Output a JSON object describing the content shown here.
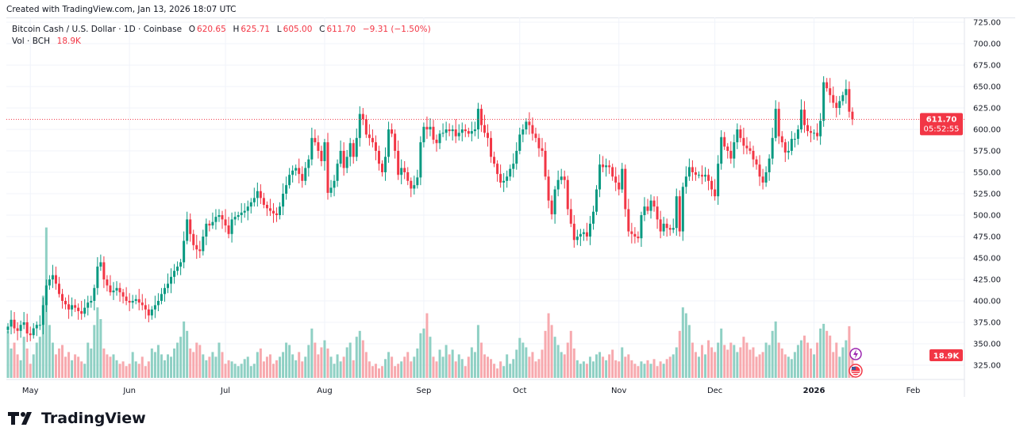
{
  "created": "Created with TradingView.com, Jan 13, 2026 18:07 UTC",
  "legend": {
    "symbol": "Bitcoin Cash / U.S. Dollar · 1D · Coinbase",
    "o_label": "O",
    "o": "620.65",
    "h_label": "H",
    "h": "625.71",
    "l_label": "L",
    "l": "605.00",
    "c_label": "C",
    "c": "611.70",
    "change": "−9.31 (−1.50%)",
    "vol_label": "Vol · BCH",
    "vol": "18.9K"
  },
  "price_label": {
    "value": "611.70",
    "countdown": "05:52:55"
  },
  "volume_label": "18.9K",
  "brand": "TradingView",
  "colors": {
    "up": "#089981",
    "down": "#f23645",
    "up_vol": "#8fd0c4",
    "down_vol": "#f7a9ae",
    "grid": "#f0f3fa",
    "event_icon": "#9c27b0"
  },
  "icons": [
    "lightning-event-icon",
    "us-flag-event-icon"
  ],
  "chart_data": {
    "type": "candlestick",
    "title": "",
    "interval": "1D",
    "ylim": [
      325,
      725
    ],
    "yticks": [
      "725.00",
      "700.00",
      "675.00",
      "650.00",
      "625.00",
      "600.00",
      "575.00",
      "550.00",
      "525.00",
      "500.00",
      "475.00",
      "450.00",
      "425.00",
      "400.00",
      "375.00",
      "350.00",
      "325.00"
    ],
    "xticks": [
      "May",
      "Jun",
      "Jul",
      "Aug",
      "Sep",
      "Oct",
      "Nov",
      "Dec",
      "2026",
      "Feb"
    ],
    "grid": true,
    "last_open": 620.65,
    "last_high": 625.71,
    "last_low": 605.0,
    "close": [
      370,
      378,
      368,
      365,
      372,
      375,
      362,
      360,
      368,
      372,
      372,
      395,
      418,
      425,
      430,
      420,
      408,
      400,
      396,
      390,
      395,
      392,
      388,
      385,
      392,
      398,
      400,
      415,
      440,
      445,
      425,
      418,
      410,
      412,
      415,
      410,
      405,
      400,
      398,
      400,
      402,
      398,
      395,
      390,
      383,
      390,
      395,
      400,
      408,
      415,
      420,
      428,
      435,
      440,
      445,
      470,
      495,
      478,
      465,
      460,
      458,
      475,
      490,
      488,
      492,
      498,
      500,
      495,
      488,
      478,
      495,
      498,
      500,
      503,
      505,
      510,
      515,
      520,
      528,
      520,
      512,
      508,
      505,
      502,
      500,
      510,
      525,
      535,
      547,
      552,
      555,
      548,
      540,
      555,
      565,
      590,
      585,
      575,
      563,
      585,
      526,
      532,
      540,
      560,
      575,
      555,
      568,
      584,
      568,
      590,
      618,
      612,
      594,
      590,
      585,
      575,
      560,
      550,
      568,
      600,
      595,
      575,
      547,
      555,
      550,
      540,
      531,
      535,
      544,
      585,
      603,
      600,
      603,
      588,
      584,
      595,
      596,
      600,
      598,
      600,
      592,
      596,
      600,
      598,
      595,
      598,
      600,
      624,
      605,
      596,
      590,
      568,
      560,
      548,
      538,
      540,
      545,
      554,
      560,
      575,
      594,
      600,
      609,
      605,
      595,
      590,
      578,
      575,
      545,
      517,
      501,
      530,
      541,
      545,
      541,
      507,
      490,
      471,
      475,
      478,
      480,
      475,
      490,
      504,
      530,
      559,
      556,
      558,
      556,
      545,
      538,
      530,
      554,
      507,
      481,
      478,
      475,
      473,
      500,
      510,
      505,
      517,
      510,
      495,
      481,
      490,
      485,
      483,
      485,
      522,
      481,
      533,
      545,
      556,
      550,
      547,
      547,
      545,
      547,
      540,
      530,
      522,
      560,
      591,
      580,
      575,
      566,
      585,
      600,
      590,
      581,
      578,
      575,
      565,
      559,
      545,
      538,
      550,
      566,
      590,
      624,
      592,
      585,
      573,
      575,
      589,
      589,
      600,
      623,
      605,
      598,
      596,
      596,
      592,
      610,
      655,
      648,
      640,
      631,
      625,
      633,
      640,
      647,
      620.65,
      611.7
    ],
    "volume_k": [
      40,
      25,
      30,
      20,
      15,
      35,
      25,
      12,
      20,
      30,
      35,
      70,
      128,
      45,
      30,
      20,
      25,
      28,
      18,
      22,
      15,
      20,
      18,
      14,
      12,
      30,
      25,
      45,
      60,
      50,
      25,
      20,
      18,
      20,
      15,
      12,
      14,
      10,
      12,
      22,
      14,
      12,
      18,
      10,
      14,
      25,
      22,
      28,
      20,
      15,
      20,
      18,
      25,
      30,
      35,
      48,
      40,
      25,
      22,
      30,
      28,
      20,
      15,
      18,
      22,
      18,
      30,
      22,
      12,
      15,
      14,
      12,
      10,
      12,
      16,
      18,
      10,
      12,
      22,
      25,
      14,
      18,
      20,
      12,
      15,
      18,
      22,
      30,
      28,
      20,
      15,
      22,
      14,
      18,
      28,
      42,
      30,
      20,
      26,
      32,
      25,
      18,
      12,
      20,
      14,
      18,
      26,
      30,
      15,
      35,
      40,
      32,
      22,
      14,
      10,
      12,
      8,
      10,
      16,
      22,
      18,
      10,
      12,
      14,
      18,
      22,
      14,
      18,
      25,
      38,
      42,
      55,
      35,
      18,
      14,
      24,
      18,
      28,
      20,
      24,
      14,
      20,
      16,
      10,
      18,
      26,
      22,
      45,
      30,
      20,
      18,
      16,
      12,
      8,
      14,
      10,
      20,
      12,
      16,
      24,
      34,
      30,
      26,
      18,
      22,
      14,
      16,
      24,
      40,
      55,
      45,
      35,
      28,
      22,
      20,
      30,
      40,
      25,
      15,
      12,
      14,
      12,
      18,
      14,
      20,
      22,
      18,
      15,
      20,
      24,
      15,
      14,
      26,
      18,
      20,
      15,
      12,
      10,
      14,
      12,
      15,
      12,
      16,
      10,
      14,
      12,
      16,
      18,
      20,
      26,
      40,
      60,
      55,
      45,
      30,
      22,
      18,
      28,
      20,
      32,
      26,
      22,
      30,
      42,
      28,
      24,
      30,
      28,
      22,
      26,
      35,
      30,
      24,
      26,
      18,
      20,
      22,
      30,
      28,
      40,
      48,
      30,
      25,
      20,
      18,
      16,
      22,
      28,
      32,
      36,
      30,
      25,
      20,
      30,
      42,
      46,
      40,
      36,
      22,
      30,
      18,
      26,
      32,
      44,
      18.9
    ]
  }
}
